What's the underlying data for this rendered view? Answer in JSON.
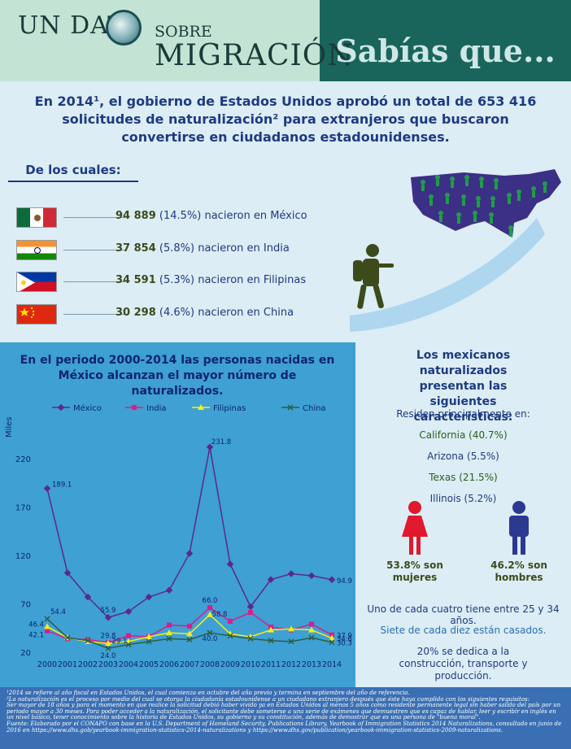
{
  "header": {
    "un_dat": "UN DAT",
    "sobre": "SOBRE",
    "migracion": "MIGRACIÓN",
    "sabias": "Sabías que..."
  },
  "intro": "En 2014¹, el gobierno de Estados Unidos aprobó un total de 653 416 solicitudes de naturalización² para extranjeros que buscaron convertirse en ciudadanos estadounidenses.",
  "de_los_cuales": "De los cuales:",
  "countries": [
    {
      "value": "94 889",
      "rest": "(14.5%) nacieron en México"
    },
    {
      "value": "37 854",
      "rest": "(5.8%) nacieron en India"
    },
    {
      "value": "34 591",
      "rest": "(5.3%) nacieron en Filipinas"
    },
    {
      "value": "30 298",
      "rest": "(4.6%) nacieron en China"
    }
  ],
  "chart_title": "En el periodo 2000-2014 las personas nacidas en México alcanzan el mayor número de naturalizados.",
  "chart_data": {
    "type": "line",
    "ylabel": "Miles",
    "ylim": [
      20,
      240
    ],
    "yticks": [
      20,
      70,
      120,
      170,
      220
    ],
    "x": [
      "2000",
      "2001",
      "2002",
      "2003",
      "2004",
      "2005",
      "2006",
      "2007",
      "2008",
      "2009",
      "2010",
      "2011",
      "2012",
      "2013",
      "2014"
    ],
    "series": [
      {
        "name": "México",
        "color": "#5b2a86",
        "values": [
          189.1,
          102,
          77,
          55.9,
          62,
          77,
          84,
          122,
          231.8,
          111,
          67,
          95,
          101,
          99,
          94.9
        ]
      },
      {
        "name": "India",
        "color": "#d81e8c",
        "values": [
          42.1,
          34,
          33,
          29.8,
          37,
          36,
          48,
          47,
          66.0,
          52,
          61,
          46,
          43,
          49,
          37.9
        ]
      },
      {
        "name": "Filipinas",
        "color": "#f4ef1a",
        "values": [
          46.4,
          35,
          31,
          29.1,
          31,
          36,
          40,
          39,
          58.8,
          39,
          36,
          43,
          44,
          43,
          34.6
        ]
      },
      {
        "name": "China",
        "color": "#2b5e44",
        "values": [
          54.4,
          35,
          32,
          24.0,
          28,
          31,
          34,
          33,
          40.0,
          37,
          34,
          32,
          31,
          35,
          30.3
        ]
      }
    ],
    "labels": [
      {
        "text": "189.1",
        "series": 0,
        "i": 0
      },
      {
        "text": "55.9",
        "series": 0,
        "i": 3
      },
      {
        "text": "231.8",
        "series": 0,
        "i": 8
      },
      {
        "text": "94.9",
        "series": 0,
        "i": 14
      },
      {
        "text": "42.1",
        "series": 1,
        "i": 0
      },
      {
        "text": "29.8",
        "series": 1,
        "i": 3
      },
      {
        "text": "66.0",
        "series": 1,
        "i": 8
      },
      {
        "text": "37.9",
        "series": 1,
        "i": 14
      },
      {
        "text": "46.4",
        "series": 2,
        "i": 0
      },
      {
        "text": "29.1",
        "series": 2,
        "i": 3
      },
      {
        "text": "58.8",
        "series": 2,
        "i": 8
      },
      {
        "text": "34.6",
        "series": 2,
        "i": 14
      },
      {
        "text": "54.4",
        "series": 3,
        "i": 0
      },
      {
        "text": "24.0",
        "series": 3,
        "i": 3
      },
      {
        "text": "40.0",
        "series": 3,
        "i": 8
      },
      {
        "text": "30.3",
        "series": 3,
        "i": 14
      }
    ]
  },
  "right": {
    "title": "Los mexicanos naturalizados presentan las siguientes características:",
    "residen": "Residen principalmente en:",
    "states": [
      "California (40.7%)",
      "Arizona (5.5%)",
      "Texas (21.5%)",
      "Illinois (5.2%)"
    ],
    "women": "53.8% son mujeres",
    "men": "46.2% son hombres",
    "age": "Uno de cada cuatro tiene entre 25 y 34 años.",
    "married": "Siete de cada diez están casados.",
    "work": "20% se dedica a la construcción, transporte y producción."
  },
  "footer": {
    "note1": "¹2014 se refiere al año fiscal en Estados Unidos, el cual comienza en octubre del año previo y termina en septiembre del año de referencia.",
    "note2": "²La naturalización es el proceso por medio del cual se otorga la ciudadanía estadounidense a un ciudadano extranjero después que éste haya cumplido con los siguientes requisitos:",
    "note3": "Ser mayor de 18 años y para el momento en que realice la solicitud debió haber vivido ya en Estados Unidos al menos 5 años como residente permanente legal sin haber salido del país por un periodo mayor a 30 meses. Para poder acceder a la naturalización, el solicitante debe someterse a una serie de exámenes que demuestren que es capaz de hablar, leer y escribir en inglés en un nivel básico, tener conocimiento sobre la historia de Estados Unidos, su gobierno y su constitución, además de demostrar que es una persona de \"buena moral\".",
    "source": "Fuente: Elaborado por el CONAPO con base en la U.S. Department of Homeland Security, Publications Library, Yearbook of Immigration Statistics 2014 Naturalizations, consultado en junio de 2016 en https://www.dhs.gob/yearbook-immigration-statistics-2014-naturalizations y https://www.dhs.gov/publication/yearbook-immigration-statistics-2009-naturalizations."
  }
}
